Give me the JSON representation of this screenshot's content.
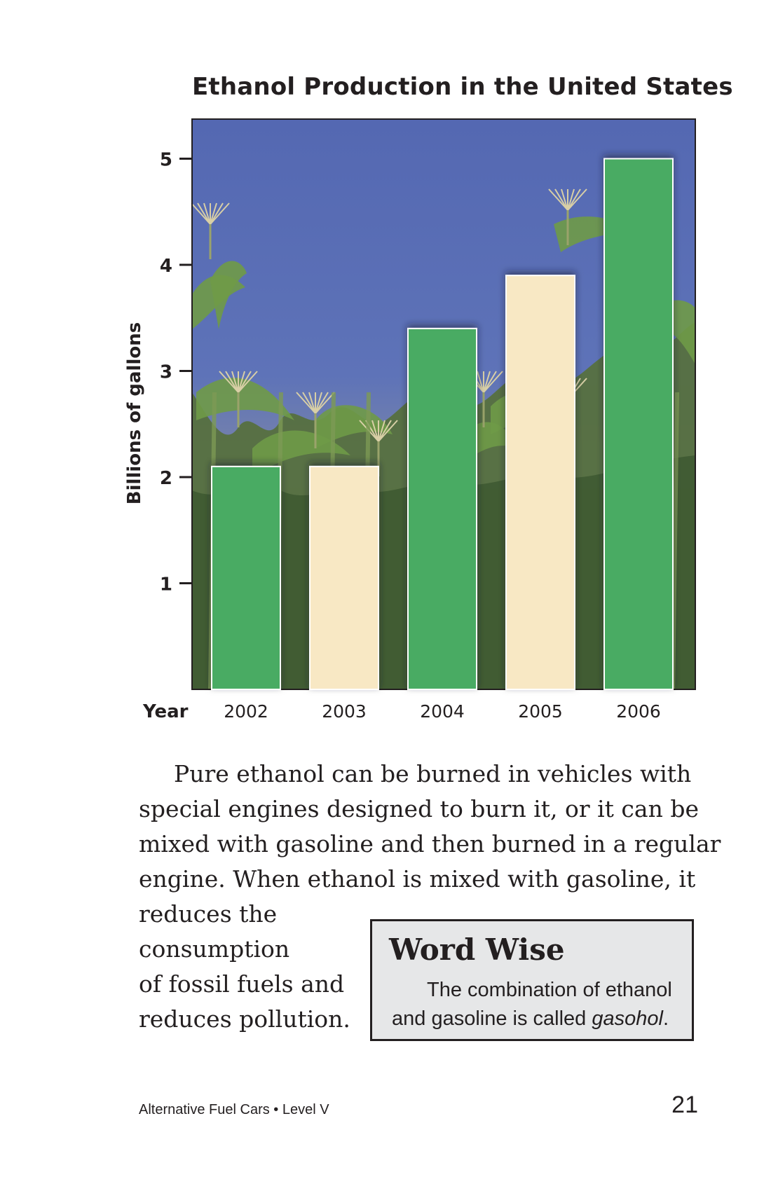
{
  "chart_data": {
    "type": "bar",
    "title": "Ethanol Production in the United States",
    "xlabel": "Year",
    "ylabel": "Billions of gallons",
    "categories": [
      "2002",
      "2003",
      "2004",
      "2005",
      "2006"
    ],
    "values": [
      2.1,
      2.1,
      3.4,
      3.9,
      5.0
    ],
    "ylim": [
      0,
      5.4
    ],
    "yticks": [
      "1",
      "2",
      "3",
      "4",
      "5"
    ],
    "grid": false,
    "legend": "none",
    "background": "photo of corn stalks against blue sky",
    "colors": {
      "green": "#4aab63",
      "cream": "#f8e8c4",
      "sky": "#5a6fb4"
    }
  },
  "text": {
    "paragraph_lines": [
      "Pure ethanol can be burned in vehicles with",
      "special engines designed to burn it, or it can be",
      "mixed with gasoline and then burned in a regular",
      "engine. When ethanol is mixed with gasoline, it"
    ],
    "paragraph_left_lines": [
      "reduces the",
      "consumption",
      "of fossil fuels and",
      "reduces pollution."
    ]
  },
  "word_wise": {
    "title": "Word Wise",
    "line1": "The combination of ethanol",
    "line2_prefix": "and gasoline is called ",
    "line2_term": "gasohol",
    "line2_suffix": "."
  },
  "footer": {
    "text": "Alternative Fuel Cars • Level V",
    "page_number": "21"
  }
}
